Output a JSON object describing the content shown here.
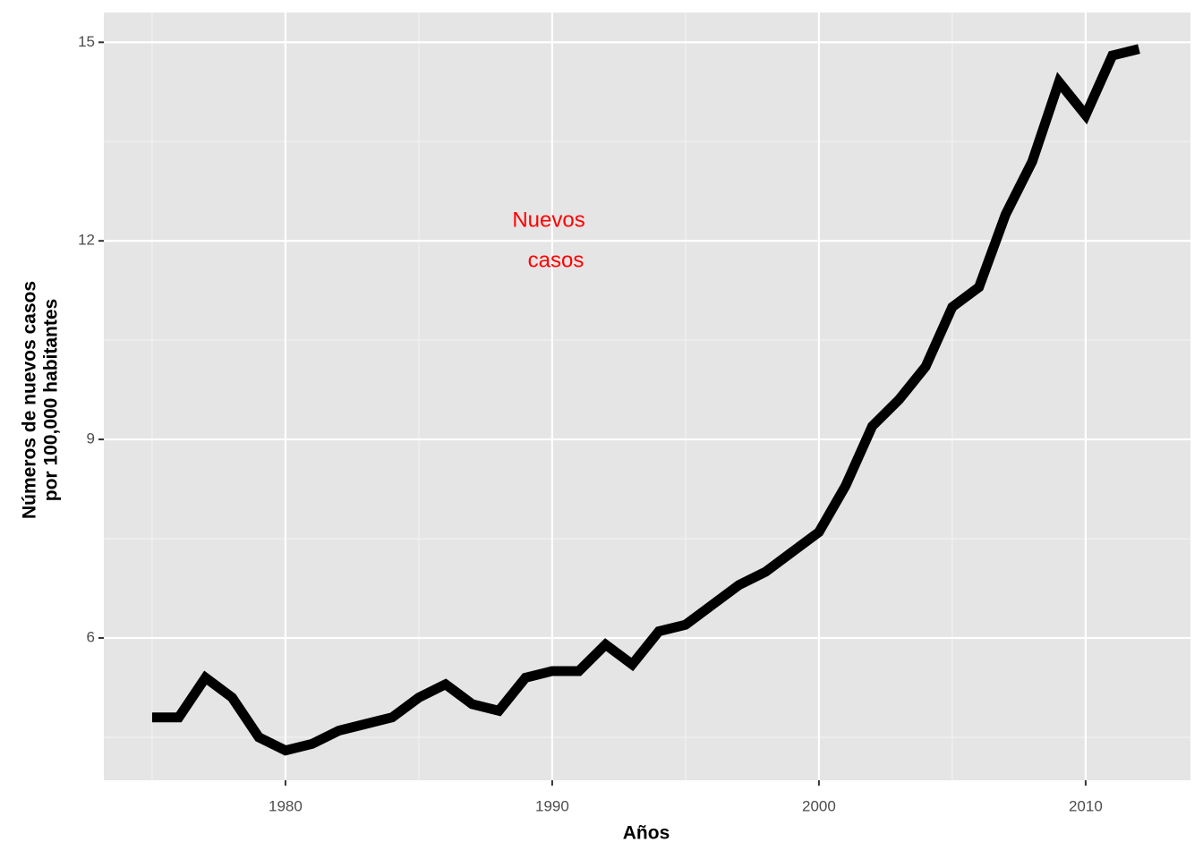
{
  "chart_data": {
    "type": "line",
    "x_label": "Años",
    "y_label": [
      "Números de nuevos casos",
      "por 100,000 habitantes"
    ],
    "annotation": [
      "Nuevos",
      "casos"
    ],
    "annotation_color": "#ff0000",
    "x": [
      1975,
      1976,
      1977,
      1978,
      1979,
      1980,
      1981,
      1982,
      1983,
      1984,
      1985,
      1986,
      1987,
      1988,
      1989,
      1990,
      1991,
      1992,
      1993,
      1994,
      1995,
      1996,
      1997,
      1998,
      1999,
      2000,
      2001,
      2002,
      2003,
      2004,
      2005,
      2006,
      2007,
      2008,
      2009,
      2010,
      2011,
      2012
    ],
    "series": [
      {
        "color": "#000000",
        "values": [
          4.8,
          4.8,
          5.4,
          5.1,
          4.5,
          4.3,
          4.4,
          4.6,
          4.7,
          4.8,
          5.1,
          5.3,
          5.0,
          4.9,
          5.4,
          5.5,
          5.5,
          5.9,
          5.6,
          6.1,
          6.2,
          6.5,
          6.8,
          7.0,
          7.3,
          7.6,
          8.3,
          9.2,
          9.6,
          10.1,
          11.0,
          11.3,
          12.4,
          13.2,
          14.4,
          13.9,
          14.8,
          14.9
        ]
      }
    ],
    "xlim": [
      1973.19,
      2013.93
    ],
    "xticks": [
      1980,
      1990,
      2000,
      2010
    ],
    "ylim": [
      3.85,
      15.45
    ],
    "yticks": [
      6,
      9,
      12,
      15
    ],
    "grid": true
  }
}
